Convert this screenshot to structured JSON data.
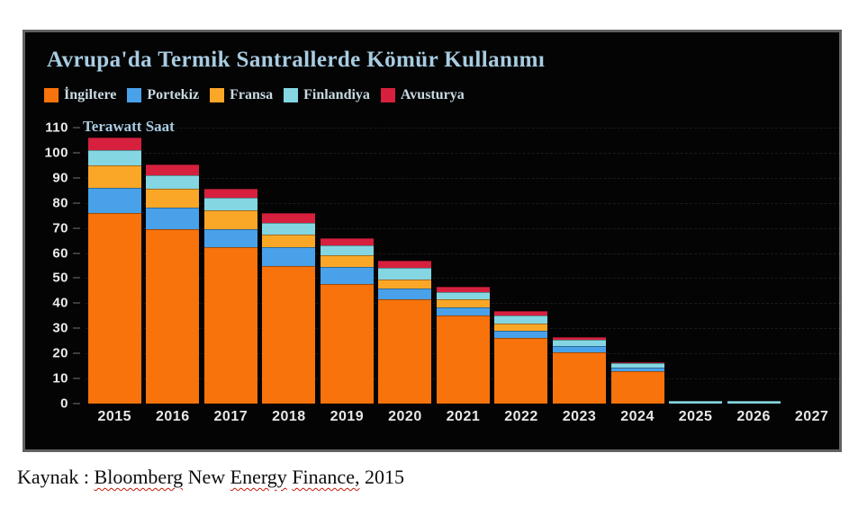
{
  "chart_data": {
    "type": "bar",
    "stacked": true,
    "title": "Avrupa'da Termik Santrallerde Kömür Kullanımı",
    "ylabel": "Terawatt Saat",
    "xlabel": "",
    "ylim": [
      0,
      110
    ],
    "ytick_interval": 10,
    "grid": "faint horizontal dashed lines every 10",
    "legend_position": "top",
    "background": "#040404",
    "categories": [
      "2015",
      "2016",
      "2017",
      "2018",
      "2019",
      "2020",
      "2021",
      "2022",
      "2023",
      "2024",
      "2025",
      "2026",
      "2027"
    ],
    "series": [
      {
        "name": "İngiltere",
        "color": "#f8730b",
        "values": [
          76,
          69.5,
          62.5,
          55,
          47.5,
          41.5,
          35,
          26,
          20.5,
          13,
          0,
          0,
          0
        ]
      },
      {
        "name": "Portekiz",
        "color": "#49a1e9",
        "values": [
          10,
          8.5,
          7,
          7.5,
          7,
          4.5,
          3.5,
          3,
          2.5,
          1.5,
          0,
          0,
          0
        ]
      },
      {
        "name": "Fransa",
        "color": "#faa728",
        "values": [
          9,
          7.5,
          7.5,
          5,
          4.5,
          3.5,
          3,
          3,
          0,
          0,
          0,
          0,
          0
        ]
      },
      {
        "name": "Finlandiya",
        "color": "#84d6e2",
        "values": [
          6,
          5.5,
          5,
          4.5,
          4,
          4.5,
          3,
          3,
          2.5,
          1.5,
          1.2,
          1.2,
          0
        ]
      },
      {
        "name": "Avusturya",
        "color": "#d6203e",
        "values": [
          5,
          4.5,
          3.5,
          4,
          3,
          3,
          2,
          2,
          1,
          0.5,
          0,
          0,
          0
        ]
      }
    ]
  },
  "colors": {
    "title_text": "#a8cce1",
    "legend_text": "#c9dae3",
    "axis_text": "#ececec",
    "panel_border": "#616161",
    "panel_background": "#040404",
    "page_background": "#ffffff"
  },
  "caption": {
    "full_text": "Kaynak : Bloomberg New Energy Finance, 2015",
    "parts": [
      {
        "text": "Kaynak : ",
        "wavy": false
      },
      {
        "text": "Bloomberg",
        "wavy": true
      },
      {
        "text": " New ",
        "wavy": false
      },
      {
        "text": "Energy",
        "wavy": true
      },
      {
        "text": " ",
        "wavy": false
      },
      {
        "text": "Finance,",
        "wavy": true
      },
      {
        "text": " 2015",
        "wavy": false
      }
    ]
  }
}
